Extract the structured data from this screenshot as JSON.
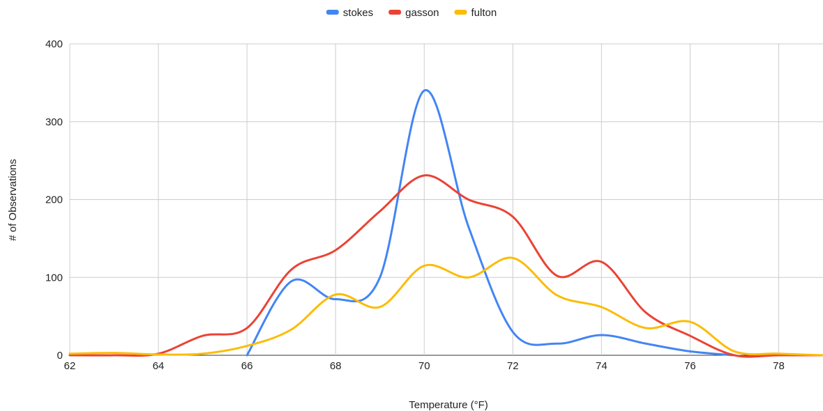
{
  "chart_data": {
    "type": "line",
    "title": "",
    "xlabel": "Temperature (°F)",
    "ylabel": "# of Observations",
    "xlim": [
      62,
      79
    ],
    "ylim": [
      0,
      400
    ],
    "xticks": [
      62,
      64,
      66,
      68,
      70,
      72,
      74,
      76,
      78
    ],
    "yticks": [
      0,
      100,
      200,
      300,
      400
    ],
    "grid": true,
    "legend": "top-center",
    "x": [
      62,
      63,
      64,
      65,
      66,
      67,
      68,
      69,
      70,
      71,
      72,
      73,
      74,
      75,
      76,
      77,
      78,
      79
    ],
    "series": [
      {
        "name": "stokes",
        "color": "#4285f4",
        "values": [
          null,
          null,
          null,
          null,
          0,
          95,
          72,
          100,
          340,
          165,
          30,
          15,
          26,
          15,
          5,
          0,
          null,
          null
        ]
      },
      {
        "name": "gasson",
        "color": "#ea4335",
        "values": [
          0,
          0,
          2,
          25,
          35,
          110,
          135,
          185,
          231,
          200,
          178,
          102,
          120,
          55,
          25,
          0,
          0,
          0
        ]
      },
      {
        "name": "fulton",
        "color": "#fbbc04",
        "values": [
          2,
          3,
          1,
          2,
          12,
          33,
          78,
          62,
          115,
          100,
          125,
          77,
          62,
          35,
          43,
          5,
          2,
          0
        ]
      }
    ]
  }
}
